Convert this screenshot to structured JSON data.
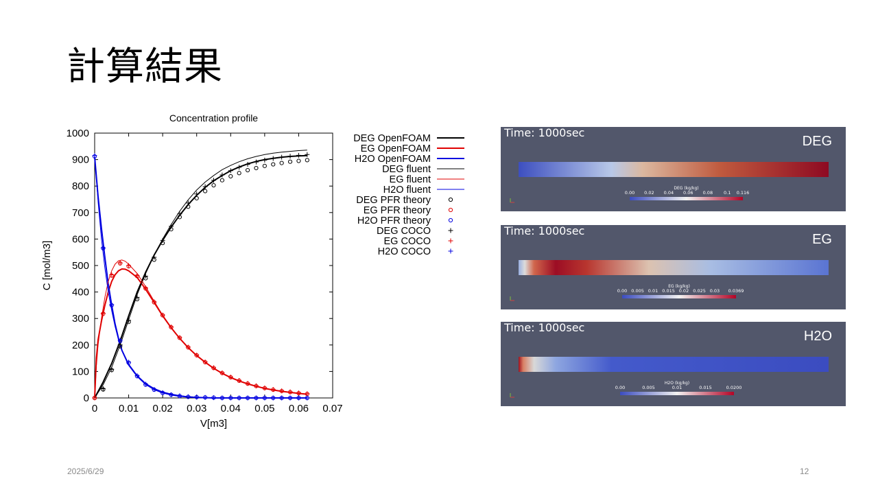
{
  "slide": {
    "title": "計算結果",
    "date": "2025/6/29",
    "page_number": "12"
  },
  "chart_data": {
    "type": "line",
    "title": "Concentration profile",
    "xlabel": "V[m3]",
    "ylabel": "C [mol/m3]",
    "xlim": [
      0,
      0.07
    ],
    "ylim": [
      0,
      1000
    ],
    "xticks": [
      0,
      0.01,
      0.02,
      0.03,
      0.04,
      0.05,
      0.06,
      0.07
    ],
    "xtick_labels": [
      "0",
      "0.01",
      "0.02",
      "0.03",
      "0.04",
      "0.05",
      "0.06",
      "0.07"
    ],
    "yticks": [
      0,
      100,
      200,
      300,
      400,
      500,
      600,
      700,
      800,
      900,
      1000
    ],
    "ytick_labels": [
      "0",
      "100",
      "200",
      "300",
      "400",
      "500",
      "600",
      "700",
      "800",
      "900",
      "1000"
    ],
    "grid": false,
    "legend_position": "outside-right",
    "colors": {
      "DEG": "#000000",
      "EG": "#e00000",
      "H2O": "#0000e0"
    },
    "series": [
      {
        "name": "DEG OpenFOAM",
        "style": "thick-line",
        "color": "#000000",
        "x": [
          0,
          0.0025,
          0.005,
          0.0075,
          0.01,
          0.0125,
          0.015,
          0.0175,
          0.02,
          0.0225,
          0.025,
          0.0275,
          0.03,
          0.0325,
          0.035,
          0.0375,
          0.04,
          0.0425,
          0.045,
          0.0475,
          0.05,
          0.0525,
          0.055,
          0.0575,
          0.06,
          0.0625
        ],
        "y": [
          0,
          60,
          130,
          215,
          310,
          400,
          475,
          540,
          595,
          645,
          690,
          730,
          765,
          795,
          820,
          840,
          858,
          872,
          884,
          893,
          900,
          905,
          909,
          912,
          914,
          915
        ]
      },
      {
        "name": "EG  OpenFOAM",
        "style": "thick-line",
        "color": "#e00000",
        "x": [
          0,
          0.0005,
          0.001,
          0.002,
          0.003,
          0.004,
          0.005,
          0.006,
          0.007,
          0.008,
          0.009,
          0.01,
          0.0125,
          0.015,
          0.0175,
          0.02,
          0.0225,
          0.025,
          0.0275,
          0.03,
          0.0325,
          0.035,
          0.0375,
          0.04,
          0.0425,
          0.045,
          0.0475,
          0.05,
          0.0525,
          0.055,
          0.0575,
          0.06,
          0.0625
        ],
        "y": [
          0,
          150,
          220,
          290,
          350,
          400,
          440,
          465,
          480,
          487,
          486,
          480,
          455,
          410,
          360,
          310,
          265,
          225,
          190,
          160,
          135,
          112,
          93,
          77,
          64,
          53,
          44,
          36,
          30,
          25,
          21,
          17,
          14
        ]
      },
      {
        "name": "H2O OpenFOAM",
        "style": "thick-line",
        "color": "#0000e0",
        "x": [
          0,
          0.001,
          0.002,
          0.003,
          0.004,
          0.005,
          0.006,
          0.007,
          0.008,
          0.01,
          0.0125,
          0.015,
          0.0175,
          0.02,
          0.0225,
          0.025,
          0.0275,
          0.03,
          0.0325,
          0.035,
          0.04,
          0.045,
          0.05,
          0.055,
          0.06,
          0.0625
        ],
        "y": [
          910,
          760,
          640,
          530,
          430,
          350,
          280,
          225,
          180,
          125,
          82,
          52,
          32,
          20,
          12,
          7,
          4,
          2,
          1,
          0,
          0,
          0,
          0,
          0,
          0,
          0
        ]
      },
      {
        "name": "DEG fluent",
        "style": "thin-line",
        "color": "#000000",
        "x": [
          0,
          0.0025,
          0.005,
          0.0075,
          0.01,
          0.0125,
          0.015,
          0.0175,
          0.02,
          0.0225,
          0.025,
          0.0275,
          0.03,
          0.0325,
          0.035,
          0.0375,
          0.04,
          0.0425,
          0.045,
          0.0475,
          0.05,
          0.0525,
          0.055,
          0.0575,
          0.06,
          0.0625
        ],
        "y": [
          0,
          50,
          115,
          200,
          295,
          390,
          470,
          540,
          600,
          655,
          705,
          748,
          785,
          815,
          840,
          862,
          878,
          892,
          903,
          912,
          919,
          924,
          928,
          931,
          934,
          936
        ]
      },
      {
        "name": "EG  fluent",
        "style": "thin-line",
        "color": "#e00000",
        "x": [
          0,
          0.0005,
          0.001,
          0.002,
          0.003,
          0.004,
          0.005,
          0.006,
          0.007,
          0.008,
          0.009,
          0.01,
          0.0125,
          0.015,
          0.0175,
          0.02,
          0.0225,
          0.025,
          0.0275,
          0.03,
          0.0325,
          0.035,
          0.0375,
          0.04,
          0.0425,
          0.045,
          0.0475,
          0.05,
          0.0525,
          0.055,
          0.0575,
          0.06,
          0.0625
        ],
        "y": [
          0,
          120,
          200,
          300,
          380,
          440,
          480,
          505,
          518,
          521,
          516,
          505,
          470,
          420,
          365,
          313,
          267,
          226,
          191,
          161,
          135,
          113,
          94,
          78,
          65,
          54,
          45,
          37,
          31,
          26,
          22,
          18,
          15
        ]
      },
      {
        "name": "H2O fluent",
        "style": "thin-line",
        "color": "#0000e0",
        "x": [
          0,
          0.001,
          0.002,
          0.003,
          0.004,
          0.005,
          0.006,
          0.007,
          0.008,
          0.01,
          0.0125,
          0.015,
          0.0175,
          0.02,
          0.0225,
          0.025,
          0.0275,
          0.03,
          0.0325,
          0.035,
          0.04,
          0.045,
          0.05,
          0.055,
          0.06,
          0.0625
        ],
        "y": [
          915,
          740,
          600,
          490,
          400,
          330,
          270,
          220,
          180,
          128,
          85,
          55,
          36,
          23,
          15,
          9,
          5,
          3,
          2,
          1,
          0,
          0,
          0,
          0,
          0,
          0
        ]
      },
      {
        "name": "DEG PFR theory",
        "style": "circle",
        "color": "#000000",
        "x": [
          0,
          0.0025,
          0.005,
          0.0075,
          0.01,
          0.0125,
          0.015,
          0.0175,
          0.02,
          0.0225,
          0.025,
          0.0275,
          0.03,
          0.0325,
          0.035,
          0.0375,
          0.04,
          0.0425,
          0.045,
          0.0475,
          0.05,
          0.0525,
          0.055,
          0.0575,
          0.06,
          0.0625
        ],
        "y": [
          0,
          32,
          105,
          195,
          287,
          373,
          452,
          522,
          585,
          637,
          683,
          722,
          754,
          781,
          803,
          822,
          837,
          849,
          860,
          868,
          876,
          882,
          887,
          892,
          895,
          898
        ]
      },
      {
        "name": "EG  PFR theory",
        "style": "circle",
        "color": "#e00000",
        "x": [
          0,
          0.0025,
          0.005,
          0.0075,
          0.01,
          0.0125,
          0.015,
          0.0175,
          0.02,
          0.0225,
          0.025,
          0.0275,
          0.03,
          0.0325,
          0.035,
          0.0375,
          0.04,
          0.0425,
          0.045,
          0.0475,
          0.05,
          0.0525,
          0.055,
          0.0575,
          0.06,
          0.0625
        ],
        "y": [
          0,
          318,
          462,
          508,
          497,
          460,
          413,
          361,
          312,
          267,
          227,
          191,
          161,
          135,
          113,
          94,
          78,
          65,
          54,
          45,
          37,
          31,
          26,
          22,
          18,
          15
        ]
      },
      {
        "name": "H2O PFR theory",
        "style": "circle",
        "color": "#0000e0",
        "x": [
          0,
          0.0025,
          0.005,
          0.0075,
          0.01,
          0.0125,
          0.015,
          0.0175,
          0.02,
          0.0225,
          0.025,
          0.0275,
          0.03,
          0.0325,
          0.035,
          0.0375,
          0.04,
          0.0425,
          0.045,
          0.0475,
          0.05,
          0.0525,
          0.055,
          0.0575,
          0.06,
          0.0625
        ],
        "y": [
          912,
          565,
          350,
          215,
          133,
          82,
          50,
          31,
          19,
          12,
          7,
          4,
          3,
          2,
          1,
          0,
          0,
          0,
          0,
          0,
          0,
          0,
          0,
          0,
          0,
          0
        ]
      },
      {
        "name": "DEG COCO",
        "style": "plus",
        "color": "#000000",
        "x": [
          0,
          0.0025,
          0.005,
          0.0075,
          0.01,
          0.0125,
          0.015,
          0.0175,
          0.02,
          0.0225,
          0.025,
          0.0275,
          0.03,
          0.0325,
          0.035,
          0.0375,
          0.04,
          0.0425,
          0.045,
          0.0475,
          0.05,
          0.0525,
          0.055,
          0.0575,
          0.06,
          0.0625
        ],
        "y": [
          0,
          35,
          108,
          200,
          293,
          380,
          460,
          531,
          595,
          648,
          695,
          736,
          770,
          798,
          822,
          842,
          858,
          871,
          882,
          891,
          898,
          904,
          909,
          913,
          916,
          919
        ]
      },
      {
        "name": "EG  COCO",
        "style": "plus",
        "color": "#e00000",
        "x": [
          0,
          0.0025,
          0.005,
          0.0075,
          0.01,
          0.0125,
          0.015,
          0.0175,
          0.02,
          0.0225,
          0.025,
          0.0275,
          0.03,
          0.0325,
          0.035,
          0.0375,
          0.04,
          0.0425,
          0.045,
          0.0475,
          0.05,
          0.0525,
          0.055,
          0.0575,
          0.06,
          0.0625
        ],
        "y": [
          0,
          320,
          465,
          510,
          500,
          462,
          415,
          363,
          313,
          268,
          228,
          192,
          162,
          136,
          114,
          95,
          79,
          66,
          55,
          46,
          38,
          32,
          27,
          23,
          19,
          16
        ]
      },
      {
        "name": "H2O COCO",
        "style": "plus",
        "color": "#0000e0",
        "x": [
          0,
          0.0025,
          0.005,
          0.0075,
          0.01,
          0.0125,
          0.015,
          0.0175,
          0.02,
          0.0225,
          0.025,
          0.0275,
          0.03,
          0.0325,
          0.035,
          0.0375,
          0.04,
          0.0425,
          0.045,
          0.0475,
          0.05,
          0.0525,
          0.055,
          0.0575,
          0.06,
          0.0625
        ],
        "y": [
          915,
          567,
          352,
          218,
          135,
          84,
          52,
          32,
          20,
          12,
          8,
          5,
          3,
          2,
          1,
          0,
          0,
          0,
          0,
          0,
          0,
          0,
          0,
          0,
          0,
          0
        ]
      }
    ]
  },
  "contour_panels": [
    {
      "time_label": "Time: 1000sec",
      "species": "DEG",
      "legend_title": "DEG (kg/kg)",
      "legend_ticks": [
        "0.00",
        "0.02",
        "0.04",
        "0.06",
        "0.08",
        "0.1",
        "0.116"
      ],
      "legend_tick_fractions": [
        0,
        0.172,
        0.345,
        0.517,
        0.69,
        0.862,
        1
      ],
      "field_gradient": [
        {
          "at": 0,
          "color": "#3d4fc0"
        },
        {
          "at": 0.3,
          "color": "#b8c8e8"
        },
        {
          "at": 0.4,
          "color": "#dbb8a0"
        },
        {
          "at": 0.65,
          "color": "#c05a3e"
        },
        {
          "at": 1,
          "color": "#8e0a22"
        }
      ]
    },
    {
      "time_label": "Time: 1000sec",
      "species": "EG",
      "legend_title": "EG (kg/kg)",
      "legend_ticks": [
        "0.00",
        "0.005",
        "0.01",
        "0.015",
        "0.02",
        "0.025",
        "0.03",
        "0.0369"
      ],
      "legend_tick_fractions": [
        0,
        0.136,
        0.271,
        0.407,
        0.542,
        0.678,
        0.813,
        1
      ],
      "field_gradient": [
        {
          "at": 0,
          "color": "#9ab0e0"
        },
        {
          "at": 0.02,
          "color": "#dcdcdc"
        },
        {
          "at": 0.05,
          "color": "#d0664c"
        },
        {
          "at": 0.12,
          "color": "#9c0d24"
        },
        {
          "at": 0.22,
          "color": "#b8362f"
        },
        {
          "at": 0.42,
          "color": "#dcc2b0"
        },
        {
          "at": 0.62,
          "color": "#a8bde3"
        },
        {
          "at": 1,
          "color": "#5a74d2"
        }
      ]
    },
    {
      "time_label": "Time: 1000sec",
      "species": "H2O",
      "legend_title": "H2O (kg/kg)",
      "legend_ticks": [
        "0.00",
        "0.005",
        "0.01",
        "0.015",
        "0.0200"
      ],
      "legend_tick_fractions": [
        0,
        0.25,
        0.5,
        0.75,
        1
      ],
      "field_gradient": [
        {
          "at": 0,
          "color": "#a0101e"
        },
        {
          "at": 0.015,
          "color": "#d88064"
        },
        {
          "at": 0.05,
          "color": "#d8d8d8"
        },
        {
          "at": 0.12,
          "color": "#8ea6e0"
        },
        {
          "at": 0.3,
          "color": "#445acb"
        },
        {
          "at": 1,
          "color": "#3b4cc0"
        }
      ]
    }
  ],
  "legend_colormap": [
    {
      "at": 0,
      "color": "#3b4cc0"
    },
    {
      "at": 0.5,
      "color": "#f2f2f2"
    },
    {
      "at": 1,
      "color": "#b40426"
    }
  ]
}
